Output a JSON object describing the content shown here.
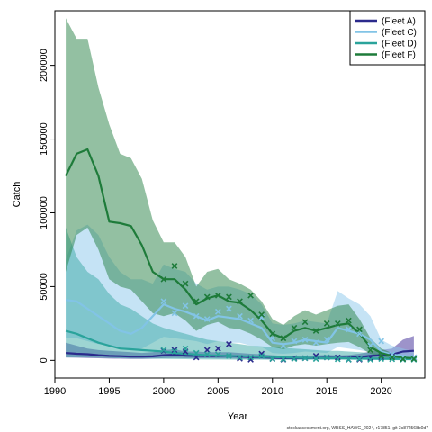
{
  "chart_data": {
    "type": "line",
    "title": "",
    "xlabel": "Year",
    "ylabel": "Catch",
    "xlim": [
      1990,
      2024
    ],
    "ylim": [
      -12000,
      237000
    ],
    "x_ticks": [
      1990,
      1995,
      2000,
      2005,
      2010,
      2015,
      2020
    ],
    "y_ticks": [
      0,
      50000,
      100000,
      150000,
      200000
    ],
    "grid": false,
    "legend_position": "top-right",
    "footer": "stockassessment.org, WBSS_HAWG_2024, r17851, git 3c872568b0d7",
    "years": [
      1991,
      1992,
      1993,
      1994,
      1995,
      1996,
      1997,
      1998,
      1999,
      2000,
      2001,
      2002,
      2003,
      2004,
      2005,
      2006,
      2007,
      2008,
      2009,
      2010,
      2011,
      2012,
      2013,
      2014,
      2015,
      2016,
      2017,
      2018,
      2019,
      2020,
      2021,
      2022,
      2023
    ],
    "series": [
      {
        "name": "(Fleet A)",
        "color": "#2b2a8c",
        "fill": "rgba(60,40,150,0.5)",
        "line": [
          5000,
          4500,
          4200,
          3500,
          3000,
          2800,
          2500,
          2500,
          2700,
          3500,
          3800,
          3200,
          3000,
          2900,
          2800,
          3000,
          2500,
          2300,
          2100,
          1800,
          1500,
          1500,
          1500,
          1700,
          1800,
          1700,
          1800,
          2200,
          3000,
          3500,
          4000,
          6000,
          6500
        ],
        "lower": [
          2000,
          1800,
          1600,
          1400,
          1200,
          1100,
          1000,
          1000,
          1100,
          1500,
          1700,
          1500,
          1400,
          1400,
          1300,
          1300,
          1100,
          1000,
          900,
          800,
          700,
          700,
          700,
          800,
          850,
          800,
          850,
          1000,
          1400,
          1600,
          1800,
          2800,
          2600
        ],
        "upper": [
          12000,
          10000,
          8000,
          7000,
          6500,
          6000,
          5500,
          5000,
          5500,
          7000,
          7500,
          6000,
          6000,
          5500,
          5500,
          5500,
          5000,
          4500,
          4200,
          3500,
          3000,
          3000,
          3000,
          3400,
          3600,
          3400,
          3600,
          4500,
          6000,
          7000,
          8000,
          14000,
          16500
        ],
        "obs_years": [
          2000,
          2001,
          2002,
          2003,
          2004,
          2005,
          2006,
          2007,
          2008,
          2009,
          2010,
          2011,
          2012,
          2013,
          2014,
          2015,
          2016,
          2017,
          2018,
          2019,
          2020,
          2021,
          2022,
          2023
        ],
        "obs": [
          6500,
          7000,
          6000,
          2000,
          7000,
          8000,
          11000,
          1200,
          500,
          4500,
          1000,
          500,
          1500,
          1500,
          3000,
          2000,
          2000,
          500,
          500,
          1500,
          2000,
          3000,
          1000,
          2000
        ]
      },
      {
        "name": "(Fleet C)",
        "color": "#82c4e6",
        "fill": "rgba(140,200,235,0.5)",
        "line": [
          41000,
          40000,
          35000,
          30000,
          25000,
          20000,
          18000,
          22000,
          30000,
          38000,
          35000,
          33000,
          30000,
          27000,
          30000,
          29000,
          28000,
          25000,
          22000,
          12000,
          11000,
          12000,
          14000,
          13000,
          12000,
          22000,
          20000,
          18000,
          14000,
          6000,
          4000,
          3000,
          2000
        ],
        "lower": [
          15000,
          15000,
          13000,
          11000,
          10000,
          8000,
          7000,
          8000,
          12000,
          16000,
          15000,
          14000,
          13000,
          11000,
          13000,
          12000,
          12000,
          10000,
          9000,
          5000,
          4500,
          5000,
          6000,
          5500,
          5000,
          9000,
          8000,
          7000,
          5500,
          2500,
          1500,
          1200,
          800
        ],
        "upper": [
          68000,
          88000,
          92000,
          85000,
          70000,
          60000,
          55000,
          55000,
          52000,
          65000,
          62000,
          60000,
          52000,
          48000,
          50000,
          50000,
          48000,
          45000,
          38000,
          25000,
          24000,
          25000,
          27000,
          26000,
          25000,
          47000,
          42000,
          38000,
          30000,
          14000,
          10000,
          8000,
          6000
        ],
        "obs_years": [
          2000,
          2001,
          2002,
          2003,
          2004,
          2005,
          2006,
          2007,
          2008,
          2009,
          2010,
          2011,
          2012,
          2013,
          2014,
          2015,
          2016,
          2017,
          2018,
          2019,
          2020,
          2021,
          2022,
          2023
        ],
        "obs": [
          40000,
          32000,
          37000,
          30000,
          28000,
          33000,
          35000,
          30000,
          27000,
          29000,
          15000,
          10000,
          13000,
          14000,
          12000,
          14000,
          25000,
          21000,
          18000,
          10000,
          13000,
          4000,
          2000,
          2000
        ]
      },
      {
        "name": "(Fleet D)",
        "color": "#2aa39b",
        "fill": "rgba(60,170,165,0.5)",
        "line": [
          20000,
          18000,
          15000,
          12000,
          10000,
          8000,
          7500,
          7000,
          6500,
          6000,
          5000,
          4500,
          4000,
          3500,
          3200,
          3000,
          2800,
          2600,
          2400,
          2200,
          2000,
          1800,
          1700,
          1600,
          1500,
          1500,
          1400,
          1300,
          1200,
          1100,
          1000,
          900,
          800
        ],
        "lower": [
          2000,
          2000,
          2000,
          1800,
          1600,
          1400,
          1300,
          1200,
          1100,
          1000,
          900,
          800,
          700,
          600,
          550,
          500,
          480,
          450,
          420,
          380,
          350,
          320,
          300,
          280,
          260,
          260,
          240,
          220,
          200,
          190,
          170,
          150,
          130
        ],
        "upper": [
          90000,
          70000,
          60000,
          55000,
          45000,
          38000,
          35000,
          30000,
          25000,
          22000,
          20000,
          18000,
          16000,
          14000,
          13000,
          12000,
          11000,
          10000,
          9500,
          9000,
          8500,
          8000,
          7500,
          7000,
          6500,
          6500,
          6000,
          5500,
          5000,
          4500,
          4000,
          3500,
          3000
        ],
        "obs_years": [
          2000,
          2001,
          2002,
          2003,
          2004,
          2005,
          2006,
          2007,
          2008,
          2009,
          2010,
          2011,
          2012,
          2013,
          2014,
          2015,
          2016,
          2017,
          2018,
          2019,
          2020,
          2021,
          2022,
          2023
        ],
        "obs": [
          7000,
          6000,
          8000,
          5000,
          4000,
          4000,
          3000,
          2000,
          2000,
          3000,
          1000,
          800,
          1000,
          1500,
          1000,
          2000,
          800,
          500,
          1000,
          500,
          1000,
          800,
          500,
          500
        ]
      },
      {
        "name": "(Fleet F)",
        "color": "#1e7b3a",
        "fill": "rgba(40,130,70,0.5)",
        "line": [
          125000,
          140000,
          143000,
          125000,
          94000,
          93000,
          91000,
          78000,
          60000,
          55000,
          55000,
          48000,
          38000,
          42000,
          44000,
          40000,
          39000,
          34000,
          27000,
          18000,
          15000,
          20000,
          22000,
          20000,
          22000,
          24000,
          25000,
          18000,
          9000,
          5000,
          3000,
          1800,
          1500
        ],
        "lower": [
          60000,
          85000,
          90000,
          75000,
          55000,
          50000,
          48000,
          40000,
          32000,
          30000,
          32000,
          27000,
          20000,
          24000,
          26000,
          22000,
          21000,
          18000,
          14000,
          9000,
          7500,
          10000,
          11000,
          10000,
          11000,
          12000,
          12500,
          9000,
          4500,
          2500,
          1500,
          900,
          750
        ],
        "upper": [
          232000,
          218000,
          218000,
          185000,
          160000,
          140000,
          137000,
          123000,
          95000,
          80000,
          80000,
          70000,
          50000,
          60000,
          62000,
          55000,
          52000,
          48000,
          40000,
          28000,
          24000,
          30000,
          34000,
          31000,
          34000,
          37000,
          38000,
          28000,
          15000,
          8000,
          5000,
          3000,
          2500
        ],
        "obs_years": [
          2000,
          2001,
          2002,
          2003,
          2004,
          2005,
          2006,
          2007,
          2008,
          2009,
          2010,
          2011,
          2012,
          2013,
          2014,
          2015,
          2016,
          2017,
          2018,
          2019,
          2020,
          2021,
          2022,
          2023
        ],
        "obs": [
          55000,
          64000,
          52000,
          40000,
          43000,
          44000,
          43000,
          40000,
          44000,
          31000,
          18000,
          15000,
          22000,
          26000,
          20000,
          25000,
          25000,
          27000,
          21000,
          7000,
          3000,
          2000,
          1000,
          1000
        ]
      }
    ]
  }
}
